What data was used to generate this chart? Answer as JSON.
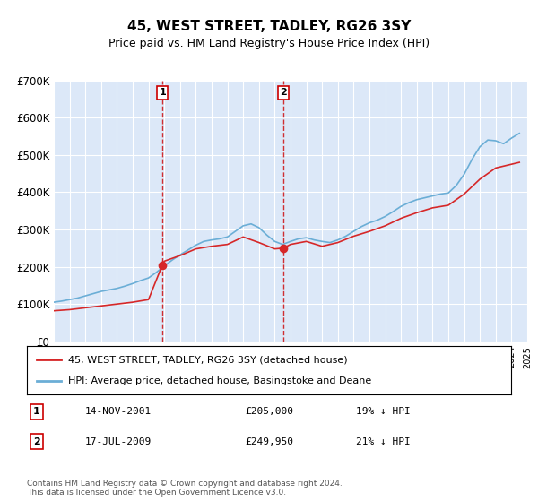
{
  "title": "45, WEST STREET, TADLEY, RG26 3SY",
  "subtitle": "Price paid vs. HM Land Registry's House Price Index (HPI)",
  "ylabel": "",
  "background_color": "#f0f4ff",
  "plot_bg": "#dce8f8",
  "legend_entry1": "45, WEST STREET, TADLEY, RG26 3SY (detached house)",
  "legend_entry2": "HPI: Average price, detached house, Basingstoke and Deane",
  "transaction1_label": "1",
  "transaction1_date": "14-NOV-2001",
  "transaction1_price": "£205,000",
  "transaction1_hpi": "19% ↓ HPI",
  "transaction2_label": "2",
  "transaction2_date": "17-JUL-2009",
  "transaction2_price": "£249,950",
  "transaction2_hpi": "21% ↓ HPI",
  "footer": "Contains HM Land Registry data © Crown copyright and database right 2024.\nThis data is licensed under the Open Government Licence v3.0.",
  "hpi_line_color": "#6baed6",
  "price_line_color": "#d62728",
  "marker_color": "#d62728",
  "vline_color": "#cc0000",
  "ylim_min": 0,
  "ylim_max": 700000,
  "yticks": [
    0,
    100000,
    200000,
    300000,
    400000,
    500000,
    600000,
    700000
  ],
  "ytick_labels": [
    "£0",
    "£100K",
    "£200K",
    "£300K",
    "£400K",
    "£500K",
    "£600K",
    "£700K"
  ],
  "hpi_years": [
    1995,
    1995.5,
    1996,
    1996.5,
    1997,
    1997.5,
    1998,
    1998.5,
    1999,
    1999.5,
    2000,
    2000.5,
    2001,
    2001.5,
    2002,
    2002.5,
    2003,
    2003.5,
    2004,
    2004.5,
    2005,
    2005.5,
    2006,
    2006.5,
    2007,
    2007.5,
    2008,
    2008.5,
    2009,
    2009.5,
    2010,
    2010.5,
    2011,
    2011.5,
    2012,
    2012.5,
    2013,
    2013.5,
    2014,
    2014.5,
    2015,
    2015.5,
    2016,
    2016.5,
    2017,
    2017.5,
    2018,
    2018.5,
    2019,
    2019.5,
    2020,
    2020.5,
    2021,
    2021.5,
    2022,
    2022.5,
    2023,
    2023.5,
    2024,
    2024.5
  ],
  "hpi_values": [
    105000,
    108000,
    112000,
    116000,
    122000,
    128000,
    134000,
    138000,
    142000,
    148000,
    155000,
    163000,
    170000,
    185000,
    202000,
    218000,
    232000,
    245000,
    258000,
    268000,
    272000,
    275000,
    280000,
    295000,
    310000,
    315000,
    305000,
    285000,
    268000,
    260000,
    268000,
    275000,
    278000,
    272000,
    268000,
    265000,
    272000,
    282000,
    295000,
    308000,
    318000,
    325000,
    335000,
    348000,
    362000,
    372000,
    380000,
    385000,
    390000,
    395000,
    398000,
    418000,
    448000,
    488000,
    522000,
    540000,
    538000,
    530000,
    545000,
    558000
  ],
  "price_years": [
    1995,
    1996,
    1997,
    1998,
    1999,
    2000,
    2001,
    2001.88,
    2002,
    2003,
    2004,
    2005,
    2006,
    2007,
    2008,
    2009,
    2009.54,
    2010,
    2011,
    2012,
    2013,
    2014,
    2015,
    2016,
    2017,
    2018,
    2019,
    2020,
    2021,
    2022,
    2023,
    2024,
    2024.5
  ],
  "price_values": [
    82000,
    85000,
    90000,
    95000,
    100000,
    105000,
    112000,
    205000,
    215000,
    230000,
    248000,
    255000,
    260000,
    280000,
    265000,
    248000,
    249950,
    260000,
    268000,
    255000,
    265000,
    282000,
    295000,
    310000,
    330000,
    345000,
    358000,
    365000,
    395000,
    435000,
    465000,
    475000,
    480000
  ],
  "marker1_x": 2001.88,
  "marker1_y": 205000,
  "marker2_x": 2009.54,
  "marker2_y": 249950,
  "vline1_x": 2001.88,
  "vline2_x": 2009.54,
  "xmin": 1995,
  "xmax": 2025
}
